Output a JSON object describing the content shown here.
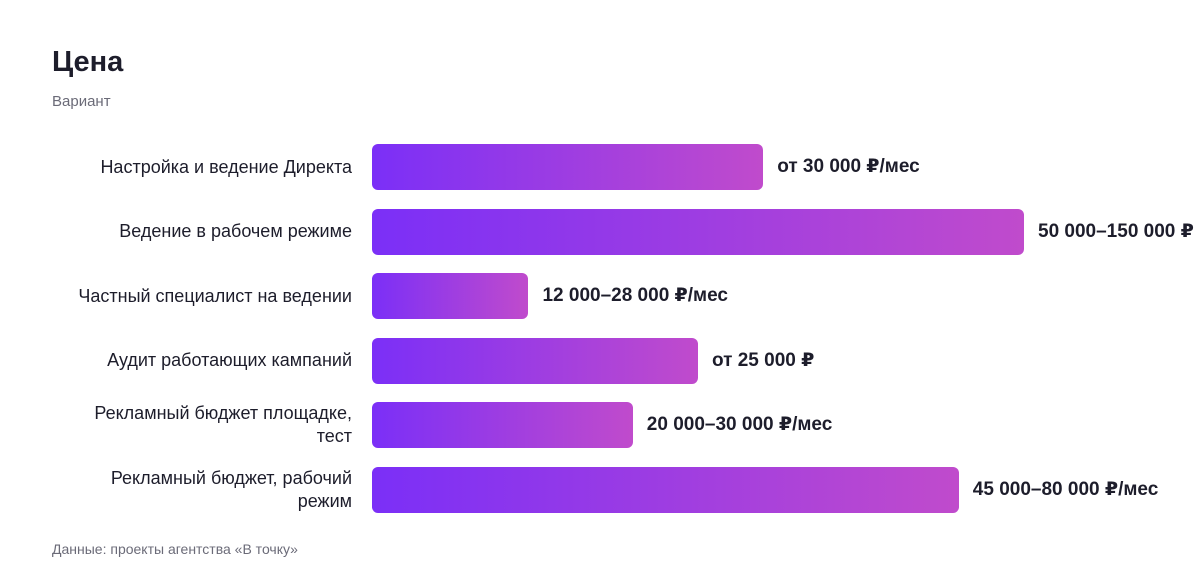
{
  "chart_data": {
    "type": "bar",
    "orientation": "horizontal",
    "title": "Цена",
    "subtitle": "Вариант",
    "categories": [
      "Настройка и ведение Директа",
      "Ведение в рабочем режиме",
      "Частный специалист на ведении",
      "Аудит работающих кампаний",
      "Рекламный бюджет площадке, тест",
      "Рекламный бюджет, рабочий режим"
    ],
    "values": [
      30000,
      50000,
      12000,
      25000,
      20000,
      45000
    ],
    "value_labels": [
      "от 30 000 ₽/мес",
      "50 000–150 000 ₽",
      "12 000–28 000 ₽/мес",
      "от 25 000 ₽",
      "20 000–30 000 ₽/мес",
      "45 000–80 000 ₽/мес"
    ],
    "colors": [
      "#7b2ff7",
      "#c04bcc"
    ],
    "source": "Данные: проекты агентства «В точку»"
  }
}
